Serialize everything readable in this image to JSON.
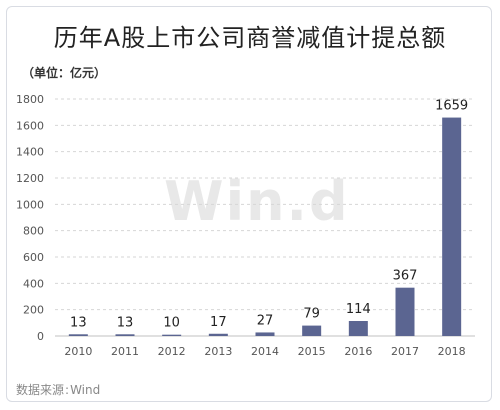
{
  "header": {
    "title": "历年A股上市公司商誉减值计提总额",
    "unit_label": "（单位：亿元）"
  },
  "footer": {
    "source_prefix": "数据来源",
    "source_colon": ":",
    "source_value": "Wind"
  },
  "watermark": "Win.d",
  "colors": {
    "bar": "#5b6591",
    "grid": "#d6d6d6",
    "axis": "#c0c0c0",
    "text": "#333333",
    "ticks": "#555555"
  },
  "chart_data": {
    "type": "bar",
    "title": "历年A股上市公司商誉减值计提总额",
    "ylabel": "（单位：亿元）",
    "xlabel": "",
    "categories": [
      "2010",
      "2011",
      "2012",
      "2013",
      "2014",
      "2015",
      "2016",
      "2017",
      "2018"
    ],
    "values": [
      13,
      13,
      10,
      17,
      27,
      79,
      114,
      367,
      1659
    ],
    "ylim": [
      0,
      1800
    ],
    "yticks": [
      0,
      200,
      400,
      600,
      800,
      1000,
      1200,
      1400,
      1600,
      1800
    ],
    "grid": true,
    "legend": "none"
  }
}
